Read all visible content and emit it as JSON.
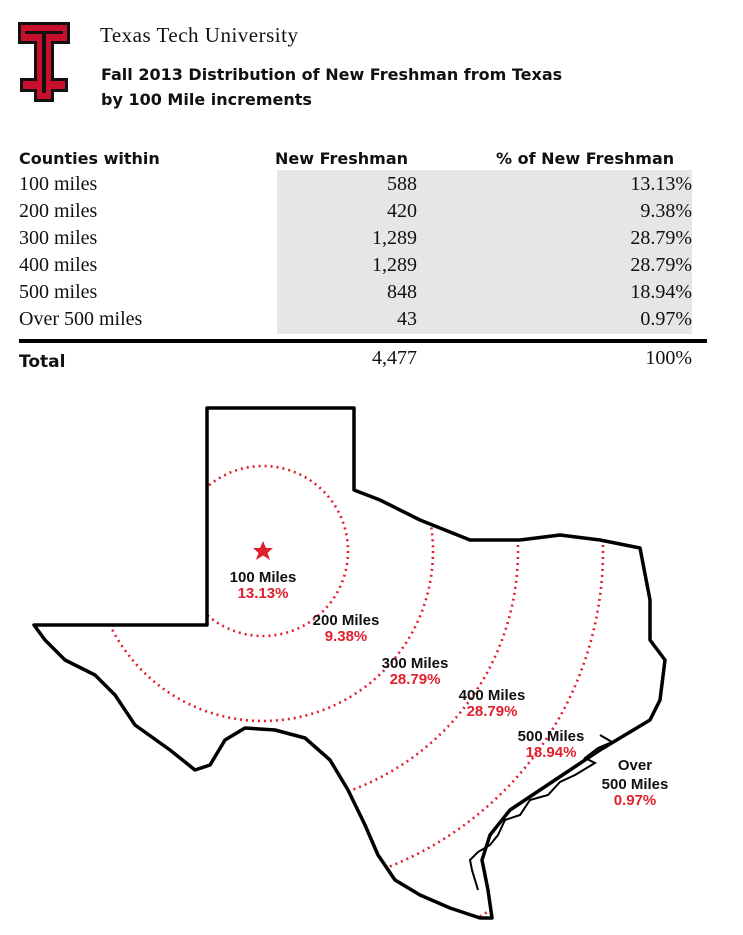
{
  "header": {
    "university": "Texas Tech University",
    "subtitle_line1": "Fall 2013 Distribution of New Freshman from Texas",
    "subtitle_line2": "by 100 Mile increments"
  },
  "table": {
    "headers": [
      "Counties within",
      "New Freshman",
      "% of New Freshman"
    ],
    "rows": [
      [
        "100 miles",
        "588",
        "13.13%"
      ],
      [
        "200 miles",
        "420",
        "9.38%"
      ],
      [
        "300 miles",
        "1,289",
        "28.79%"
      ],
      [
        "400 miles",
        "1,289",
        "28.79%"
      ],
      [
        "500 miles",
        "848",
        "18.94%"
      ],
      [
        "Over 500 miles",
        "43",
        "0.97%"
      ]
    ],
    "total": [
      "Total",
      "4,477",
      "100%"
    ]
  },
  "map": {
    "labels": [
      {
        "name": "100 Miles",
        "pct": "13.13%"
      },
      {
        "name": "200 Miles",
        "pct": "9.38%"
      },
      {
        "name": "300 Miles",
        "pct": "28.79%"
      },
      {
        "name": "400 Miles",
        "pct": "28.79%"
      },
      {
        "name": "500 Miles",
        "pct": "18.94%"
      },
      {
        "name_line1": "Over",
        "name_line2": "500 Miles",
        "pct": "0.97%"
      }
    ]
  },
  "colors": {
    "logo_red": "#c8102e",
    "ring_red": "#e0202c",
    "table_fill": "#e6e6e6"
  }
}
